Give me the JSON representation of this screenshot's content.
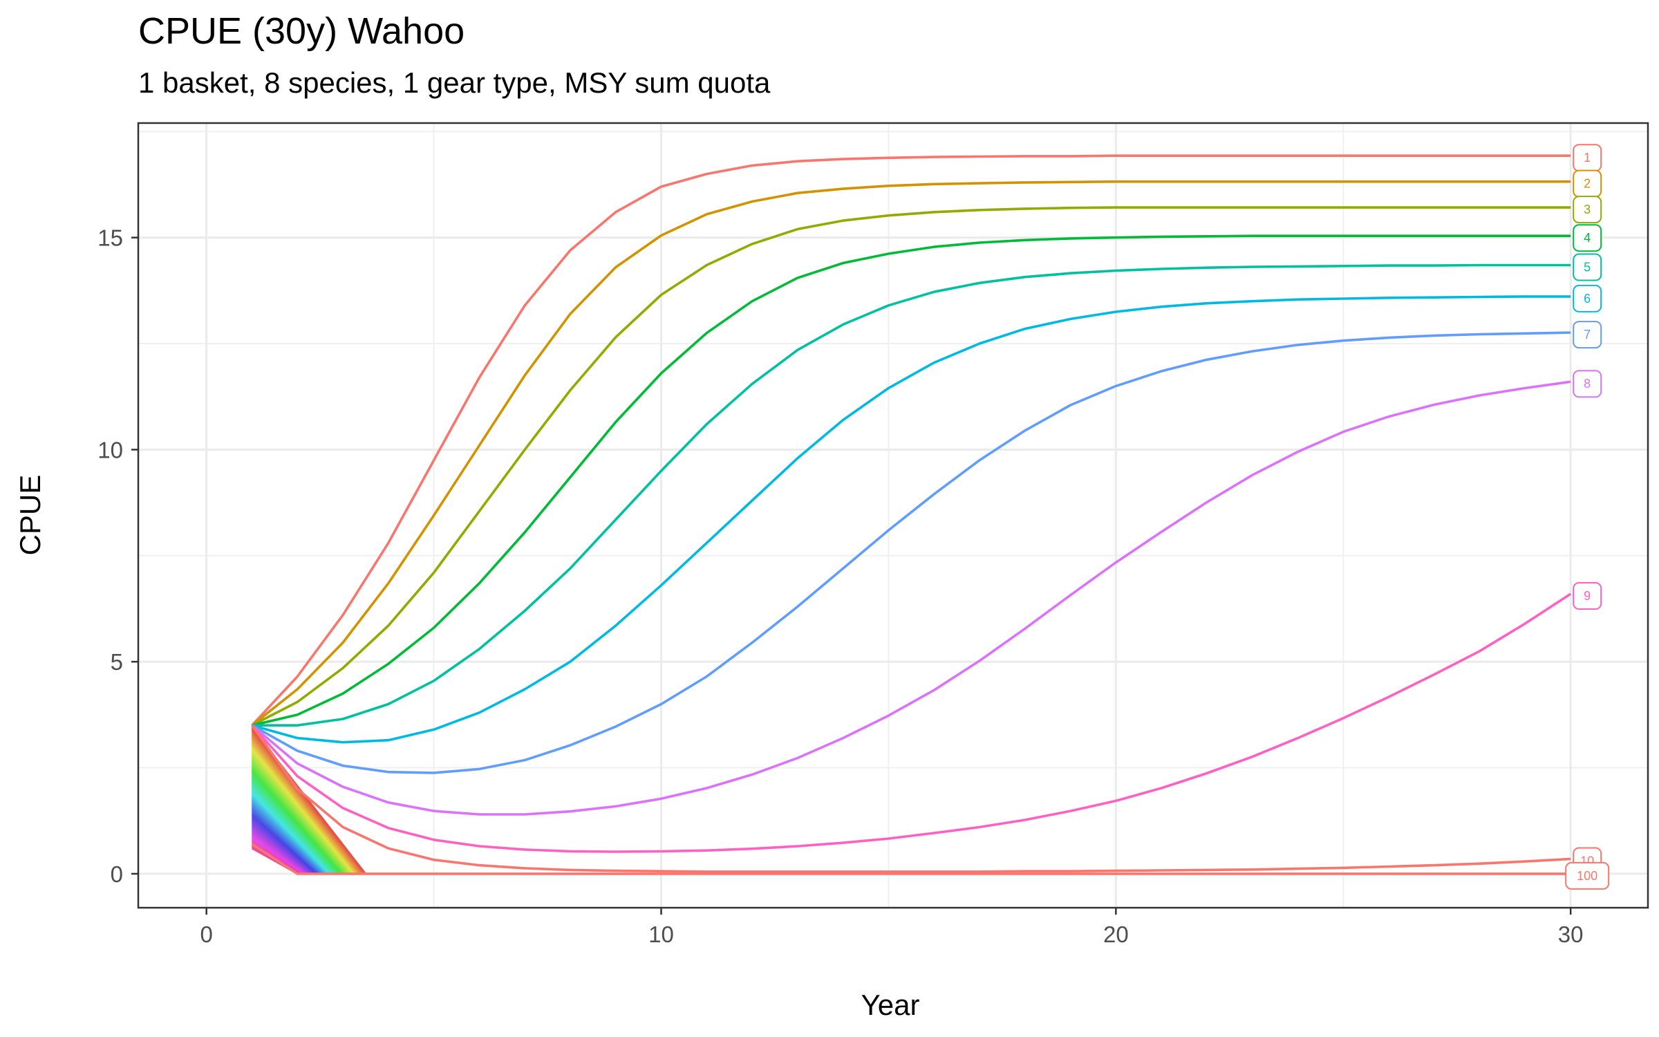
{
  "chart_data": {
    "type": "line",
    "title": "CPUE (30y) Wahoo",
    "subtitle": "1 basket, 8 species, 1 gear type, MSY sum quota",
    "xlabel": "Year",
    "ylabel": "CPUE",
    "xlim": [
      -1.5,
      31.7
    ],
    "ylim": [
      -0.8,
      17.7
    ],
    "x_ticks": [
      0,
      10,
      20,
      30
    ],
    "y_ticks": [
      0,
      5,
      10,
      15
    ],
    "grid": true,
    "legend": "none; series labelled at line ends",
    "x": [
      1,
      2,
      3,
      4,
      5,
      6,
      7,
      8,
      9,
      10,
      11,
      12,
      13,
      14,
      15,
      16,
      17,
      18,
      19,
      20,
      21,
      22,
      23,
      24,
      25,
      26,
      27,
      28,
      29,
      30
    ],
    "series": [
      {
        "name": "1",
        "color": "#F8766D",
        "values": [
          3.5,
          4.65,
          6.1,
          7.8,
          9.75,
          11.7,
          13.4,
          14.7,
          15.6,
          16.2,
          16.5,
          16.7,
          16.8,
          16.85,
          16.88,
          16.9,
          16.91,
          16.92,
          16.92,
          16.93,
          16.93,
          16.93,
          16.93,
          16.93,
          16.93,
          16.93,
          16.93,
          16.93,
          16.93,
          16.93
        ]
      },
      {
        "name": "2",
        "color": "#D39200",
        "values": [
          3.5,
          4.35,
          5.45,
          6.85,
          8.45,
          10.1,
          11.75,
          13.2,
          14.3,
          15.05,
          15.55,
          15.85,
          16.05,
          16.15,
          16.22,
          16.26,
          16.28,
          16.3,
          16.31,
          16.32,
          16.32,
          16.32,
          16.32,
          16.32,
          16.32,
          16.32,
          16.32,
          16.32,
          16.32,
          16.32
        ]
      },
      {
        "name": "3",
        "color": "#93AA00",
        "values": [
          3.5,
          4.05,
          4.85,
          5.85,
          7.1,
          8.55,
          10.0,
          11.4,
          12.65,
          13.65,
          14.35,
          14.85,
          15.2,
          15.4,
          15.52,
          15.6,
          15.65,
          15.68,
          15.7,
          15.71,
          15.71,
          15.71,
          15.71,
          15.71,
          15.71,
          15.71,
          15.71,
          15.71,
          15.71,
          15.71
        ]
      },
      {
        "name": "4",
        "color": "#00BA38",
        "values": [
          3.5,
          3.75,
          4.25,
          4.95,
          5.8,
          6.85,
          8.05,
          9.35,
          10.65,
          11.8,
          12.75,
          13.5,
          14.05,
          14.4,
          14.62,
          14.78,
          14.88,
          14.94,
          14.98,
          15.0,
          15.02,
          15.03,
          15.04,
          15.04,
          15.04,
          15.04,
          15.04,
          15.04,
          15.04,
          15.04
        ]
      },
      {
        "name": "5",
        "color": "#00C19F",
        "values": [
          3.5,
          3.5,
          3.65,
          4.0,
          4.55,
          5.3,
          6.2,
          7.2,
          8.35,
          9.5,
          10.6,
          11.55,
          12.35,
          12.95,
          13.4,
          13.72,
          13.93,
          14.07,
          14.16,
          14.22,
          14.26,
          14.29,
          14.31,
          14.32,
          14.33,
          14.34,
          14.34,
          14.35,
          14.35,
          14.35
        ]
      },
      {
        "name": "6",
        "color": "#00B9E3",
        "values": [
          3.5,
          3.2,
          3.1,
          3.15,
          3.4,
          3.8,
          4.35,
          5.0,
          5.85,
          6.8,
          7.8,
          8.8,
          9.8,
          10.7,
          11.45,
          12.05,
          12.5,
          12.85,
          13.08,
          13.25,
          13.37,
          13.45,
          13.5,
          13.54,
          13.56,
          13.58,
          13.59,
          13.6,
          13.61,
          13.61
        ]
      },
      {
        "name": "7",
        "color": "#619CFF",
        "values": [
          3.5,
          2.9,
          2.55,
          2.4,
          2.38,
          2.47,
          2.68,
          3.03,
          3.47,
          4.0,
          4.65,
          5.45,
          6.3,
          7.2,
          8.1,
          8.95,
          9.75,
          10.45,
          11.05,
          11.5,
          11.85,
          12.12,
          12.32,
          12.47,
          12.57,
          12.64,
          12.69,
          12.72,
          12.74,
          12.76
        ]
      },
      {
        "name": "8",
        "color": "#DB72FB",
        "values": [
          3.5,
          2.6,
          2.05,
          1.68,
          1.48,
          1.4,
          1.4,
          1.47,
          1.59,
          1.77,
          2.02,
          2.34,
          2.73,
          3.2,
          3.73,
          4.33,
          5.02,
          5.78,
          6.57,
          7.34,
          8.06,
          8.76,
          9.4,
          9.95,
          10.42,
          10.78,
          11.06,
          11.28,
          11.45,
          11.6
        ]
      },
      {
        "name": "9",
        "color": "#FF61C3",
        "values": [
          3.5,
          2.3,
          1.55,
          1.08,
          0.8,
          0.65,
          0.57,
          0.53,
          0.52,
          0.53,
          0.55,
          0.59,
          0.65,
          0.73,
          0.83,
          0.96,
          1.1,
          1.27,
          1.48,
          1.72,
          2.02,
          2.37,
          2.76,
          3.2,
          3.67,
          4.17,
          4.7,
          5.25,
          5.9,
          6.6
        ]
      },
      {
        "name": "10",
        "color": "#F8766D",
        "values": [
          3.5,
          2.0,
          1.1,
          0.6,
          0.33,
          0.2,
          0.13,
          0.09,
          0.07,
          0.06,
          0.05,
          0.05,
          0.05,
          0.05,
          0.05,
          0.05,
          0.05,
          0.06,
          0.06,
          0.07,
          0.08,
          0.09,
          0.1,
          0.12,
          0.14,
          0.17,
          0.2,
          0.24,
          0.29,
          0.35
        ]
      },
      {
        "name": "100",
        "color": "#F8766D",
        "values": [
          0.7,
          0.0,
          0.0,
          0.0,
          0.0,
          0.0,
          0.0,
          0.0,
          0.0,
          0.0,
          0.0,
          0.0,
          0.0,
          0.0,
          0.0,
          0.0,
          0.0,
          0.0,
          0.0,
          0.0,
          0.0,
          0.0,
          0.0,
          0.0,
          0.0,
          0.0,
          0.0,
          0.0,
          0.0,
          0.0
        ]
      }
    ],
    "background_series_note": "many additional unlabelled lines (labels 11-99) in rainbow colours start between 0.6 and 3.5 at year 1 and drop to 0 by year 2-4",
    "annotations": [
      "1",
      "2",
      "3",
      "4",
      "5",
      "6",
      "7",
      "8",
      "9",
      "10",
      "100"
    ]
  }
}
